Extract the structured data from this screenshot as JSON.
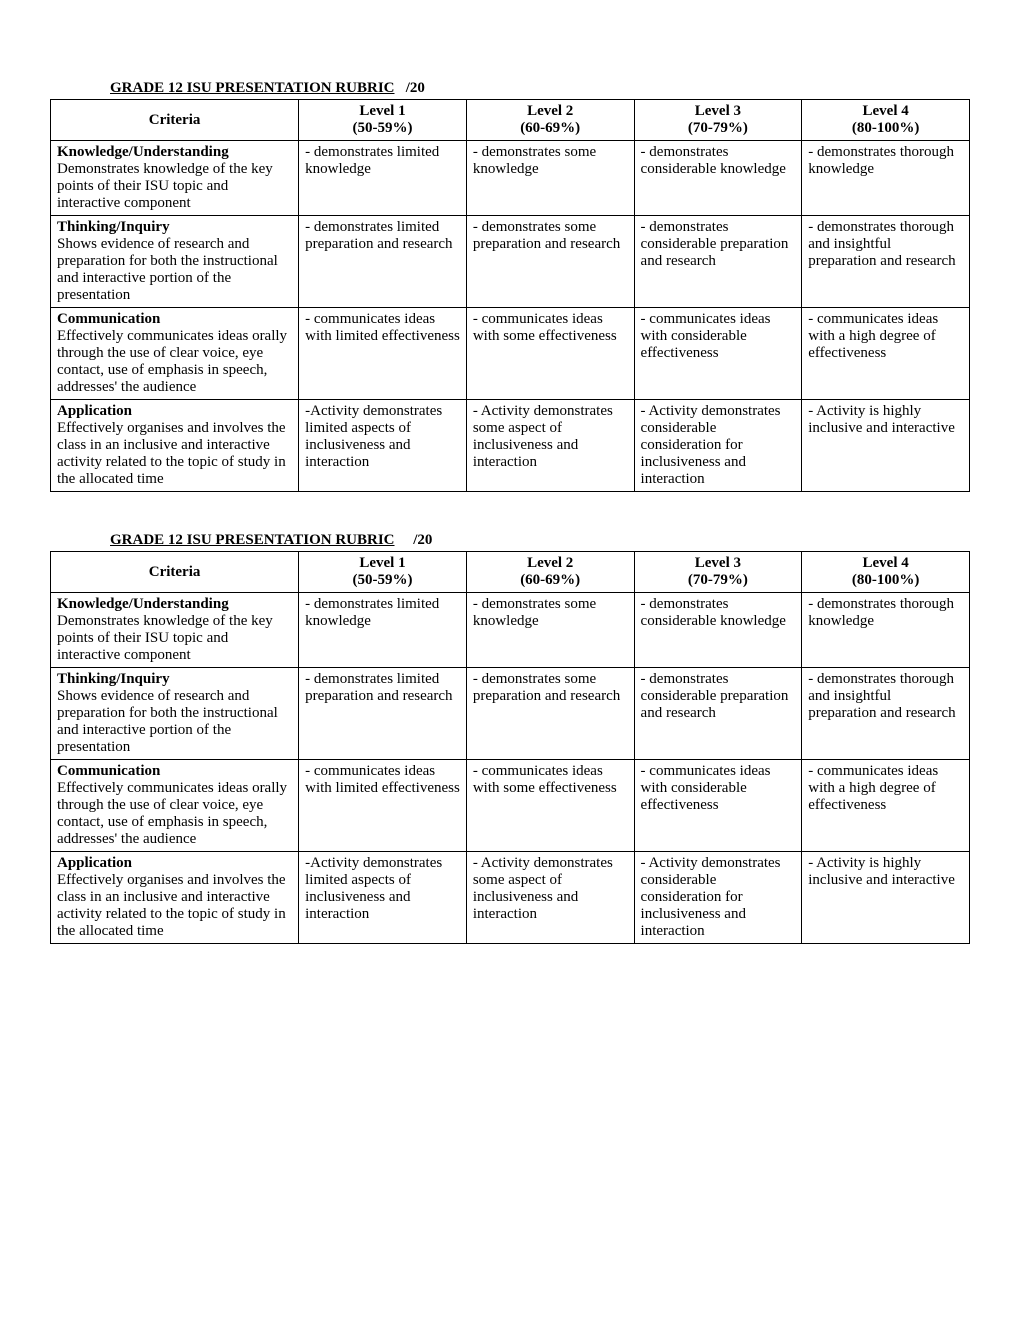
{
  "rubric": {
    "title_main": "GRADE 12 ISU PRESENTATION RUBRIC",
    "title_score": "/20",
    "headers": {
      "criteria": "Criteria",
      "level1_line1": "Level 1",
      "level1_line2": "(50-59%)",
      "level2_line1": "Level 2",
      "level2_line2": "(60-69%)",
      "level3_line1": "Level 3",
      "level3_line2": "(70-79%)",
      "level4_line1": "Level 4",
      "level4_line2": "(80-100%)"
    },
    "rows": [
      {
        "title": "Knowledge/Understanding",
        "desc": "Demonstrates knowledge of the key points of their ISU  topic and interactive component",
        "l1": "- demonstrates limited knowledge",
        "l2": "- demonstrates some knowledge",
        "l3": "- demonstrates considerable knowledge",
        "l4": "- demonstrates thorough knowledge"
      },
      {
        "title": "Thinking/Inquiry",
        "desc": "Shows evidence of research and preparation for both the instructional and interactive portion of the presentation",
        "l1": "- demonstrates limited preparation and research",
        "l2": "- demonstrates some preparation and research",
        "l3": "- demonstrates considerable preparation and research",
        "l4": "- demonstrates thorough and insightful preparation and research"
      },
      {
        "title": "Communication",
        "desc": "Effectively communicates ideas orally through the use of clear voice, eye contact, use of emphasis in speech, addresses' the audience",
        "l1": "- communicates ideas with limited effectiveness",
        "l2": "- communicates ideas with some effectiveness",
        "l3": "- communicates ideas with considerable effectiveness",
        "l4": "- communicates ideas with a high degree of effectiveness"
      },
      {
        "title": "Application",
        "desc": "Effectively organises and involves the class in an inclusive and interactive activity related to the topic of study in the allocated time",
        "l1": "-Activity demonstrates limited aspects of inclusiveness and interaction",
        "l2": "- Activity demonstrates some aspect of inclusiveness and interaction",
        "l3": "- Activity demonstrates considerable consideration for inclusiveness and interaction",
        "l4": "- Activity is highly inclusive and interactive"
      }
    ]
  }
}
